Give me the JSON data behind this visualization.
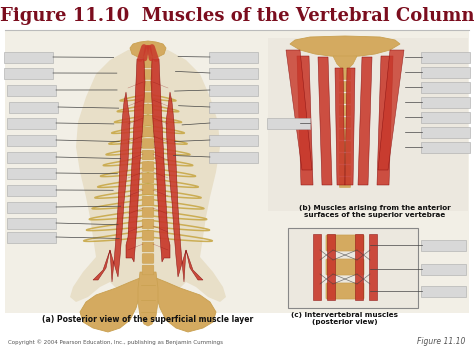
{
  "title": "Figure 11.10  Muscles of the Vertebral Column",
  "title_color": "#7B0D1E",
  "title_fontsize": 13,
  "bg_color": "#ffffff",
  "caption_a": "(a) Posterior view of the superficial muscle layer",
  "caption_b": "(b) Muscles arising from the anterior\nsurfaces of the superior vertebrae",
  "caption_c": "(c) Intervertebral muscles\n(posterior view)",
  "copyright": "Copyright © 2004 Pearson Education, Inc., publishing as Benjamin Cummings",
  "figure_label": "Figure 11.10",
  "separator_color": "#bbbbbb",
  "label_box_color": "#d8d8d8",
  "main_bg": "#f0ede4",
  "muscle_red": "#c8392b",
  "muscle_red2": "#e05030",
  "bone_tan": "#d4aa60",
  "bone_tan2": "#c9a050",
  "line_color": "#444444",
  "spine_color": "#c8a848",
  "rib_color": "#c8a848"
}
